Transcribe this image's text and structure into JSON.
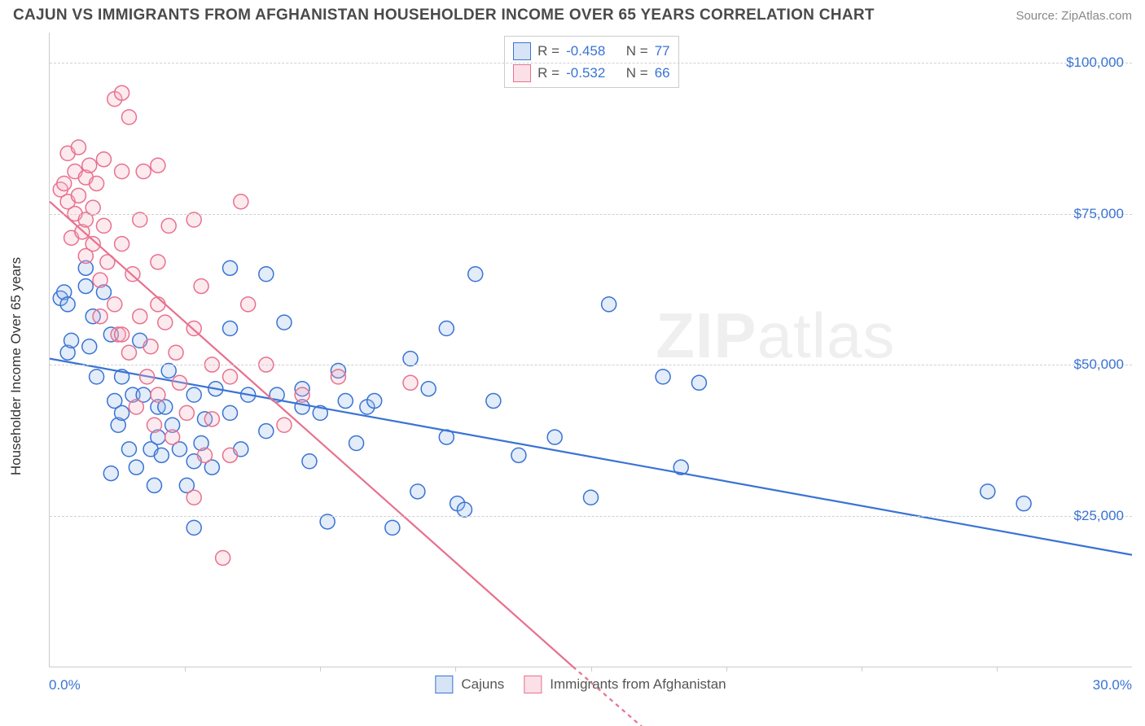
{
  "header": {
    "title": "CAJUN VS IMMIGRANTS FROM AFGHANISTAN HOUSEHOLDER INCOME OVER 65 YEARS CORRELATION CHART",
    "source": "Source: ZipAtlas.com"
  },
  "watermark": {
    "bold": "ZIP",
    "rest": "atlas"
  },
  "chart": {
    "type": "scatter",
    "y_label": "Householder Income Over 65 years",
    "xlim": [
      0,
      30
    ],
    "ylim": [
      0,
      105000
    ],
    "x_axis_labels": [
      {
        "pos": 0,
        "text": "0.0%"
      },
      {
        "pos": 30,
        "text": "30.0%"
      }
    ],
    "x_ticks": [
      3.75,
      7.5,
      11.25,
      15,
      18.75,
      22.5,
      26.25
    ],
    "y_gridlines": [
      {
        "val": 25000,
        "label": "$25,000"
      },
      {
        "val": 50000,
        "label": "$50,000"
      },
      {
        "val": 75000,
        "label": "$75,000"
      },
      {
        "val": 100000,
        "label": "$100,000"
      }
    ],
    "background_color": "#ffffff",
    "grid_color": "#d0d0d0",
    "axis_color": "#cccccc",
    "tick_label_color": "#3973d4",
    "marker_radius": 9,
    "marker_stroke_width": 1.5,
    "marker_fill_opacity": 0.28,
    "trend_line_width": 2.2,
    "series": [
      {
        "name": "Cajuns",
        "color_stroke": "#3973d4",
        "color_fill": "#9cbce8",
        "R": "-0.458",
        "N": "77",
        "trend": {
          "x1": 0,
          "y1": 51000,
          "x2": 30,
          "y2": 18500
        },
        "points": [
          [
            0.3,
            61000
          ],
          [
            0.4,
            62000
          ],
          [
            0.5,
            60000
          ],
          [
            0.5,
            52000
          ],
          [
            0.6,
            54000
          ],
          [
            1.0,
            66000
          ],
          [
            1.0,
            63000
          ],
          [
            1.1,
            53000
          ],
          [
            1.2,
            58000
          ],
          [
            1.3,
            48000
          ],
          [
            1.5,
            62000
          ],
          [
            1.7,
            55000
          ],
          [
            1.7,
            32000
          ],
          [
            1.8,
            44000
          ],
          [
            1.9,
            40000
          ],
          [
            2.0,
            48000
          ],
          [
            2.0,
            42000
          ],
          [
            2.2,
            36000
          ],
          [
            2.3,
            45000
          ],
          [
            2.4,
            33000
          ],
          [
            2.5,
            54000
          ],
          [
            2.6,
            45000
          ],
          [
            2.8,
            36000
          ],
          [
            2.9,
            30000
          ],
          [
            3.0,
            43000
          ],
          [
            3.0,
            38000
          ],
          [
            3.1,
            35000
          ],
          [
            3.2,
            43000
          ],
          [
            3.3,
            49000
          ],
          [
            3.4,
            40000
          ],
          [
            3.6,
            36000
          ],
          [
            3.8,
            30000
          ],
          [
            4.0,
            45000
          ],
          [
            4.0,
            34000
          ],
          [
            4.0,
            23000
          ],
          [
            4.2,
            37000
          ],
          [
            4.3,
            41000
          ],
          [
            4.5,
            33000
          ],
          [
            4.6,
            46000
          ],
          [
            5.0,
            66000
          ],
          [
            5.0,
            56000
          ],
          [
            5.0,
            42000
          ],
          [
            5.3,
            36000
          ],
          [
            5.5,
            45000
          ],
          [
            6.0,
            65000
          ],
          [
            6.0,
            39000
          ],
          [
            6.3,
            45000
          ],
          [
            6.5,
            57000
          ],
          [
            7.0,
            46000
          ],
          [
            7.0,
            43000
          ],
          [
            7.2,
            34000
          ],
          [
            7.5,
            42000
          ],
          [
            7.7,
            24000
          ],
          [
            8.0,
            49000
          ],
          [
            8.2,
            44000
          ],
          [
            8.5,
            37000
          ],
          [
            8.8,
            43000
          ],
          [
            9.0,
            44000
          ],
          [
            9.5,
            23000
          ],
          [
            10.0,
            51000
          ],
          [
            10.2,
            29000
          ],
          [
            10.5,
            46000
          ],
          [
            11.0,
            38000
          ],
          [
            11.0,
            56000
          ],
          [
            11.3,
            27000
          ],
          [
            11.5,
            26000
          ],
          [
            11.8,
            65000
          ],
          [
            12.3,
            44000
          ],
          [
            13.0,
            35000
          ],
          [
            14.0,
            38000
          ],
          [
            15.0,
            28000
          ],
          [
            15.5,
            60000
          ],
          [
            17.0,
            48000
          ],
          [
            17.5,
            33000
          ],
          [
            18.0,
            47000
          ],
          [
            26.0,
            29000
          ],
          [
            27.0,
            27000
          ]
        ]
      },
      {
        "name": "Immigrants from Afghanistan",
        "color_stroke": "#e8718d",
        "color_fill": "#f4b4c4",
        "R": "-0.532",
        "N": "66",
        "trend": {
          "x1": 0,
          "y1": 77000,
          "x2": 14.5,
          "y2": 0
        },
        "trend_dashed_extension": {
          "x1": 14.5,
          "y1": 0,
          "x2": 17,
          "y2": -13000
        },
        "points": [
          [
            0.3,
            79000
          ],
          [
            0.4,
            80000
          ],
          [
            0.5,
            85000
          ],
          [
            0.5,
            77000
          ],
          [
            0.6,
            71000
          ],
          [
            0.7,
            82000
          ],
          [
            0.7,
            75000
          ],
          [
            0.8,
            86000
          ],
          [
            0.8,
            78000
          ],
          [
            0.9,
            72000
          ],
          [
            1.0,
            81000
          ],
          [
            1.0,
            74000
          ],
          [
            1.0,
            68000
          ],
          [
            1.1,
            83000
          ],
          [
            1.2,
            76000
          ],
          [
            1.2,
            70000
          ],
          [
            1.3,
            80000
          ],
          [
            1.4,
            64000
          ],
          [
            1.4,
            58000
          ],
          [
            1.5,
            84000
          ],
          [
            1.5,
            73000
          ],
          [
            1.6,
            67000
          ],
          [
            1.8,
            94000
          ],
          [
            1.8,
            60000
          ],
          [
            1.9,
            55000
          ],
          [
            2.0,
            95000
          ],
          [
            2.0,
            82000
          ],
          [
            2.0,
            70000
          ],
          [
            2.0,
            55000
          ],
          [
            2.2,
            91000
          ],
          [
            2.2,
            52000
          ],
          [
            2.3,
            65000
          ],
          [
            2.4,
            43000
          ],
          [
            2.5,
            74000
          ],
          [
            2.5,
            58000
          ],
          [
            2.6,
            82000
          ],
          [
            2.7,
            48000
          ],
          [
            2.8,
            53000
          ],
          [
            2.9,
            40000
          ],
          [
            3.0,
            83000
          ],
          [
            3.0,
            67000
          ],
          [
            3.0,
            60000
          ],
          [
            3.0,
            45000
          ],
          [
            3.2,
            57000
          ],
          [
            3.3,
            73000
          ],
          [
            3.4,
            38000
          ],
          [
            3.5,
            52000
          ],
          [
            3.6,
            47000
          ],
          [
            3.8,
            42000
          ],
          [
            4.0,
            74000
          ],
          [
            4.0,
            56000
          ],
          [
            4.0,
            28000
          ],
          [
            4.2,
            63000
          ],
          [
            4.3,
            35000
          ],
          [
            4.5,
            50000
          ],
          [
            4.5,
            41000
          ],
          [
            4.8,
            18000
          ],
          [
            5.0,
            48000
          ],
          [
            5.0,
            35000
          ],
          [
            5.3,
            77000
          ],
          [
            5.5,
            60000
          ],
          [
            6.0,
            50000
          ],
          [
            6.5,
            40000
          ],
          [
            7.0,
            45000
          ],
          [
            8.0,
            48000
          ],
          [
            10.0,
            47000
          ]
        ]
      }
    ],
    "legend_top": {
      "R_label": "R =",
      "N_label": "N ="
    },
    "legend_bottom_labels": [
      "Cajuns",
      "Immigrants from Afghanistan"
    ]
  }
}
